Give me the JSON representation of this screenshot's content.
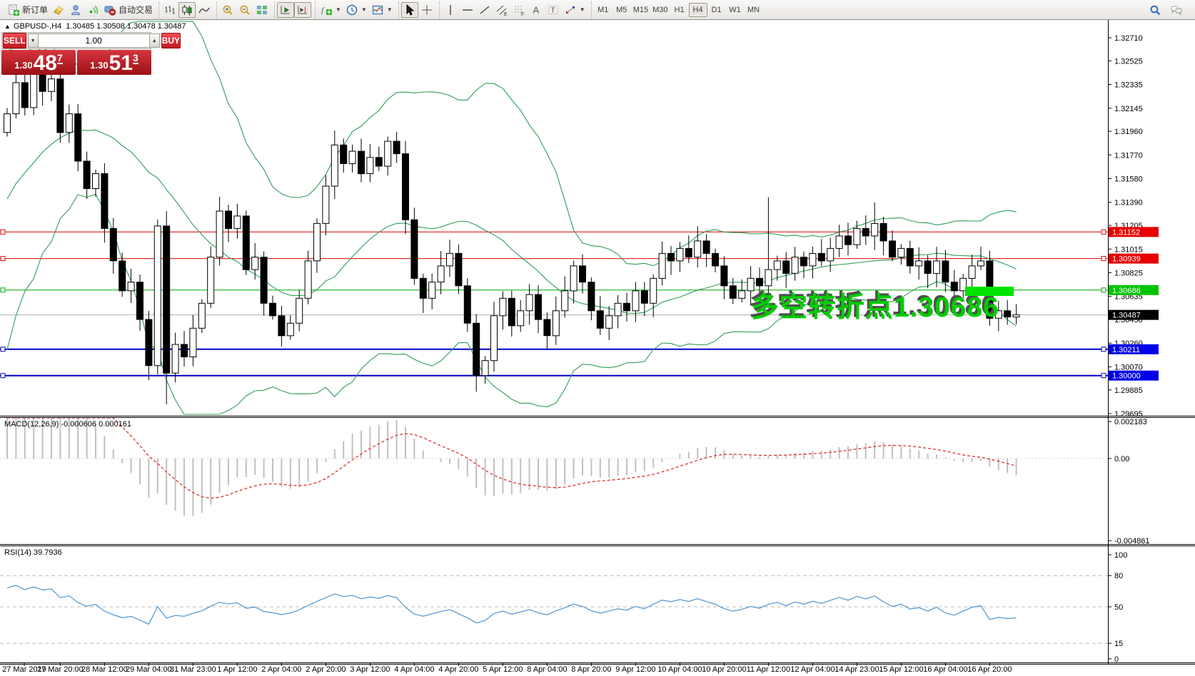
{
  "toolbar": {
    "groups": [
      {
        "items": [
          {
            "icon": "new-order",
            "name": "new-order-button",
            "label": "新订单"
          },
          {
            "icon": "eraser",
            "name": "eraser-button"
          },
          {
            "icon": "profile",
            "name": "profile-button"
          },
          {
            "icon": "signal",
            "name": "signals-button"
          },
          {
            "icon": "autotrade",
            "name": "autotrading-button",
            "label": "自动交易"
          }
        ]
      },
      {
        "items": [
          {
            "icon": "bars",
            "name": "bar-chart-button"
          },
          {
            "icon": "candles",
            "name": "candlestick-chart-button",
            "active": true
          },
          {
            "icon": "linechart",
            "name": "line-chart-button"
          }
        ]
      },
      {
        "items": [
          {
            "icon": "zoomin",
            "name": "zoom-in-button"
          },
          {
            "icon": "zoomout",
            "name": "zoom-out-button"
          },
          {
            "icon": "tile",
            "name": "tile-windows-button"
          }
        ]
      },
      {
        "items": [
          {
            "icon": "autoscroll",
            "name": "auto-scroll-button",
            "active": true
          },
          {
            "icon": "shift",
            "name": "chart-shift-button",
            "active": true
          }
        ]
      },
      {
        "items": [
          {
            "icon": "indicators",
            "name": "indicators-button",
            "caret": true
          },
          {
            "icon": "clock",
            "name": "periods-button",
            "caret": true
          },
          {
            "icon": "template",
            "name": "templates-button",
            "caret": true
          }
        ]
      },
      {
        "items": [
          {
            "icon": "cursor",
            "name": "cursor-button",
            "active": true
          },
          {
            "icon": "crosshair",
            "name": "crosshair-button"
          }
        ]
      },
      {
        "items": [
          {
            "icon": "vline",
            "name": "vertical-line-button"
          },
          {
            "icon": "hline",
            "name": "horizontal-line-button"
          },
          {
            "icon": "trendline",
            "name": "trendline-button"
          },
          {
            "icon": "channel",
            "name": "equidistant-channel-button"
          },
          {
            "icon": "fibo",
            "name": "fibonacci-button"
          },
          {
            "icon": "textA",
            "name": "text-button"
          },
          {
            "icon": "textT",
            "name": "text-label-button"
          },
          {
            "icon": "arrows",
            "name": "arrows-button",
            "caret": true
          }
        ]
      }
    ],
    "timeframes": [
      "M1",
      "M5",
      "M15",
      "M30",
      "H1",
      "H4",
      "D1",
      "W1",
      "MN"
    ],
    "active_timeframe": "H4",
    "right_items": [
      {
        "icon": "search",
        "name": "search-button"
      },
      {
        "icon": "chat",
        "name": "chat-button"
      }
    ]
  },
  "chart_header": {
    "collapse": "▲",
    "symbol_period": "GBPUSD-,H4",
    "ohlc": "1.30485 1.30508 1.30478 1.30487"
  },
  "trade_panel": {
    "sell_label": "SELL",
    "buy_label": "BUY",
    "volume": "1.00",
    "sell": {
      "prefix": "1.30",
      "big": "48",
      "sup": "7"
    },
    "buy": {
      "prefix": "1.30",
      "big": "51",
      "sup": "3"
    }
  },
  "annotation": {
    "text": "多空转折点1.30686",
    "color": "#00cc00",
    "marker_color": "#00e400"
  },
  "chart_data": {
    "type": "candlestick",
    "symbol": "GBPUSD-",
    "period": "H4",
    "x_labels": [
      "27 Mar 2019",
      "27 Mar 20:00",
      "28 Mar 12:00",
      "29 Mar 04:00",
      "31 Mar 23:00",
      "1 Apr 12:00",
      "2 Apr 04:00",
      "2 Apr 20:00",
      "3 Apr 12:00",
      "4 Apr 04:00",
      "4 Apr 20:00",
      "5 Apr 12:00",
      "8 Apr 04:00",
      "8 Apr 20:00",
      "9 Apr 12:00",
      "10 Apr 04:00",
      "10 Apr 20:00",
      "11 Apr 12:00",
      "12 Apr 04:00",
      "14 Apr 23:00",
      "15 Apr 12:00",
      "16 Apr 04:00",
      "16 Apr 20:00"
    ],
    "y_ticks": [
      "1.32710",
      "1.32525",
      "1.32335",
      "1.32145",
      "1.31960",
      "1.31770",
      "1.31580",
      "1.31390",
      "1.31205",
      "1.31015",
      "1.30825",
      "1.30635",
      "1.30450",
      "1.30260",
      "1.30070",
      "1.29885",
      "1.29695"
    ],
    "candles": {
      "first_open": 1.3195,
      "closes": [
        1.321,
        1.3235,
        1.3215,
        1.3242,
        1.3228,
        1.3238,
        1.3195,
        1.321,
        1.3172,
        1.315,
        1.3162,
        1.3118,
        1.3092,
        1.3068,
        1.3075,
        1.3045,
        1.3008,
        1.312,
        1.3002,
        1.3025,
        1.3015,
        1.3038,
        1.3058,
        1.3095,
        1.3132,
        1.3118,
        1.3128,
        1.3085,
        1.3095,
        1.3058,
        1.3048,
        1.3032,
        1.3042,
        1.3062,
        1.3092,
        1.3122,
        1.3152,
        1.3185,
        1.317,
        1.318,
        1.3162,
        1.3175,
        1.3168,
        1.3188,
        1.3178,
        1.3125,
        1.3078,
        1.3062,
        1.3075,
        1.3088,
        1.3098,
        1.3072,
        1.3042,
        1.3,
        1.3012,
        1.3048,
        1.3062,
        1.304,
        1.3052,
        1.3065,
        1.3045,
        1.3032,
        1.3052,
        1.3068,
        1.3088,
        1.3075,
        1.3052,
        1.3038,
        1.3048,
        1.3058,
        1.3052,
        1.3068,
        1.3058,
        1.3078,
        1.3098,
        1.3092,
        1.3102,
        1.3095,
        1.3108,
        1.3098,
        1.3088,
        1.3072,
        1.3062,
        1.3068,
        1.3078,
        1.3072,
        1.3085,
        1.3092,
        1.3082,
        1.3095,
        1.3088,
        1.3098,
        1.3092,
        1.3102,
        1.3112,
        1.3105,
        1.3118,
        1.3112,
        1.3122,
        1.3108,
        1.3095,
        1.3102,
        1.3088,
        1.3092,
        1.3082,
        1.3092,
        1.3075,
        1.3068,
        1.3078,
        1.3088,
        1.3092,
        1.3046,
        1.3052,
        1.3047,
        1.30487
      ],
      "warmup_closes": [
        1.302,
        1.299,
        1.304,
        1.308,
        1.306,
        1.311,
        1.309,
        1.314,
        1.312,
        1.316,
        1.315,
        1.318,
        1.316,
        1.319,
        1.3175,
        1.32,
        1.3185,
        1.3205,
        1.319,
        1.32
      ],
      "overrides": {
        "3": {
          "h": 1.3253
        },
        "18": {
          "l": 1.2977
        },
        "24": {
          "h": 1.3141
        },
        "53": {
          "l": 1.2987
        },
        "86": {
          "h": 1.3143
        },
        "98": {
          "h": 1.3139
        },
        "111": {
          "l": 1.304
        }
      }
    },
    "indicators": {
      "bollinger": {
        "period": 20,
        "deviation": 2,
        "color": "#2e9e57"
      },
      "macd": {
        "label": "MACD(12,26,9) -0.000606 0.000161",
        "fast": 12,
        "slow": 26,
        "signal": 9,
        "hist_color": "#c0c0c0",
        "signal_color": "#e03030",
        "ticks": [
          {
            "label": "0.002183",
            "v": 0.002183
          },
          {
            "label": "0.00",
            "v": 0
          },
          {
            "label": "-0.004861",
            "v": -0.004861
          }
        ]
      },
      "rsi": {
        "label": "RSI(14) 39.7936",
        "period": 14,
        "color": "#5b9bd5",
        "levels": [
          80,
          50,
          15
        ],
        "ticks": [
          {
            "label": "100",
            "v": 100
          },
          {
            "label": "80",
            "v": 80
          },
          {
            "label": "50",
            "v": 50
          },
          {
            "label": "15",
            "v": 15
          },
          {
            "label": "0",
            "v": 0
          }
        ]
      }
    },
    "levels": [
      {
        "price": 1.31152,
        "label": "1.31152",
        "line": "#e00000",
        "bg": "#e60000",
        "width": 1
      },
      {
        "price": 1.30939,
        "label": "1.30939",
        "line": "#e00000",
        "bg": "#e60000",
        "width": 1
      },
      {
        "price": 1.30686,
        "label": "1.30686",
        "line": "#00a800",
        "bg": "#00c400",
        "width": 1
      },
      {
        "price": 1.30211,
        "label": "1.30211",
        "line": "#0000d0",
        "bg": "#0000e6",
        "width": 2
      },
      {
        "price": 1.3,
        "label": "1.30000",
        "line": "#0000d0",
        "bg": "#0000e6",
        "width": 2
      }
    ],
    "current": {
      "price": 1.30487,
      "label": "1.30487",
      "line": "#b0b0b0",
      "bg": "#000000"
    }
  }
}
